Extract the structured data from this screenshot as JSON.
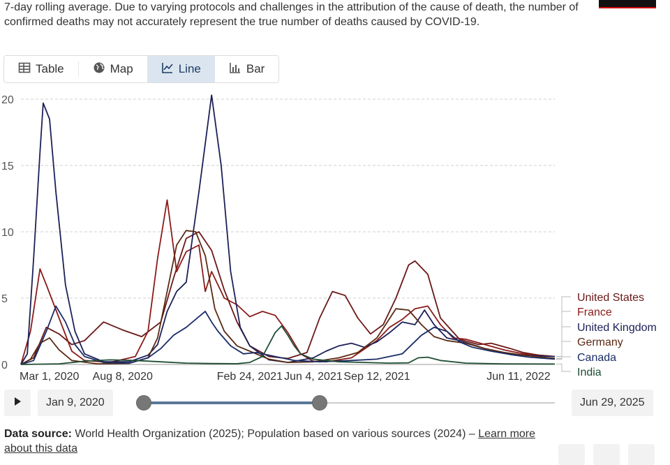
{
  "subtitle": "7-day rolling average. Due to varying protocols and challenges in the attribution of the cause of death, the number of\nconfirmed deaths may not accurately represent the true number of deaths caused by COVID-19.",
  "tabs": [
    {
      "label": "Table",
      "icon": "table-icon"
    },
    {
      "label": "Map",
      "icon": "globe-icon"
    },
    {
      "label": "Line",
      "icon": "line-chart-icon",
      "active": true
    },
    {
      "label": "Bar",
      "icon": "bar-chart-icon"
    }
  ],
  "timeline": {
    "start": "Jan 9, 2020",
    "end": "Jun 29, 2025",
    "range_fraction": [
      0,
      0.427
    ]
  },
  "source": {
    "prefix": "Data source:",
    "text": "World Health Organization (2025); Population based on various sources (2024) –",
    "link": "Learn more about this data"
  },
  "chart_data": {
    "type": "line",
    "ylim": [
      0,
      20
    ],
    "yticks": [
      0,
      5,
      10,
      15,
      20
    ],
    "xlim": [
      0,
      840
    ],
    "xticks": [
      {
        "t": 0,
        "label": "Mar 1, 2020"
      },
      {
        "t": 160,
        "label": "Aug 8, 2020"
      },
      {
        "t": 360,
        "label": "Feb 24, 2021"
      },
      {
        "t": 460,
        "label": "Jun 4, 2021"
      },
      {
        "t": 560,
        "label": "Sep 12, 2021"
      },
      {
        "t": 833,
        "label": "Jun 11, 2022"
      }
    ],
    "series": [
      {
        "name": "United States",
        "color": "#6a1717",
        "points": [
          [
            0,
            0
          ],
          [
            20,
            0.5
          ],
          [
            40,
            2.8
          ],
          [
            60,
            2.3
          ],
          [
            80,
            1.5
          ],
          [
            100,
            1.8
          ],
          [
            130,
            3.2
          ],
          [
            160,
            2.6
          ],
          [
            190,
            2.1
          ],
          [
            220,
            3.2
          ],
          [
            240,
            6.5
          ],
          [
            260,
            9.5
          ],
          [
            280,
            10
          ],
          [
            300,
            8.6
          ],
          [
            320,
            5.6
          ],
          [
            340,
            3.2
          ],
          [
            360,
            1.4
          ],
          [
            390,
            0.6
          ],
          [
            420,
            0.45
          ],
          [
            450,
            0.9
          ],
          [
            470,
            3.5
          ],
          [
            490,
            5.5
          ],
          [
            510,
            5.2
          ],
          [
            530,
            3.5
          ],
          [
            550,
            2.3
          ],
          [
            570,
            3
          ],
          [
            590,
            5
          ],
          [
            610,
            7.5
          ],
          [
            620,
            7.8
          ],
          [
            640,
            6.8
          ],
          [
            660,
            3.5
          ],
          [
            690,
            1.9
          ],
          [
            720,
            1.5
          ],
          [
            740,
            1.6
          ],
          [
            770,
            1.2
          ],
          [
            790,
            0.9
          ],
          [
            815,
            0.7
          ],
          [
            840,
            0.6
          ]
        ]
      },
      {
        "name": "France",
        "color": "#8b1a1a",
        "points": [
          [
            0,
            0
          ],
          [
            15,
            2.5
          ],
          [
            30,
            7.2
          ],
          [
            40,
            6
          ],
          [
            60,
            3.5
          ],
          [
            80,
            1
          ],
          [
            100,
            0.3
          ],
          [
            140,
            0.15
          ],
          [
            180,
            0.6
          ],
          [
            200,
            2.5
          ],
          [
            215,
            8
          ],
          [
            230,
            12.4
          ],
          [
            245,
            7
          ],
          [
            260,
            8.5
          ],
          [
            280,
            9
          ],
          [
            290,
            5.5
          ],
          [
            300,
            7
          ],
          [
            320,
            5
          ],
          [
            340,
            4.5
          ],
          [
            360,
            3.6
          ],
          [
            380,
            4
          ],
          [
            400,
            3.7
          ],
          [
            420,
            2.4
          ],
          [
            440,
            0.8
          ],
          [
            460,
            0.25
          ],
          [
            480,
            0.2
          ],
          [
            520,
            0.5
          ],
          [
            560,
            1.8
          ],
          [
            580,
            2.8
          ],
          [
            600,
            3.4
          ],
          [
            620,
            4.2
          ],
          [
            640,
            4.4
          ],
          [
            660,
            3
          ],
          [
            680,
            2
          ],
          [
            700,
            1.9
          ],
          [
            730,
            1.5
          ],
          [
            760,
            1.1
          ],
          [
            790,
            0.8
          ],
          [
            840,
            0.6
          ]
        ]
      },
      {
        "name": "United Kingdom",
        "color": "#1c1f57",
        "points": [
          [
            0,
            0
          ],
          [
            10,
            0.8
          ],
          [
            20,
            8
          ],
          [
            30,
            16
          ],
          [
            35,
            19.7
          ],
          [
            45,
            18.5
          ],
          [
            55,
            13
          ],
          [
            70,
            6
          ],
          [
            85,
            2.5
          ],
          [
            100,
            0.8
          ],
          [
            130,
            0.2
          ],
          [
            170,
            0.2
          ],
          [
            200,
            0.7
          ],
          [
            215,
            1.5
          ],
          [
            230,
            4
          ],
          [
            245,
            5.5
          ],
          [
            260,
            6.2
          ],
          [
            280,
            13
          ],
          [
            300,
            20.3
          ],
          [
            315,
            15
          ],
          [
            330,
            7
          ],
          [
            345,
            2.8
          ],
          [
            360,
            1.4
          ],
          [
            390,
            0.35
          ],
          [
            420,
            0.15
          ],
          [
            460,
            0.5
          ],
          [
            480,
            1
          ],
          [
            500,
            1.4
          ],
          [
            520,
            1.6
          ],
          [
            540,
            1.3
          ],
          [
            560,
            1.7
          ],
          [
            580,
            2.4
          ],
          [
            600,
            3.2
          ],
          [
            620,
            3
          ],
          [
            635,
            4.1
          ],
          [
            650,
            3
          ],
          [
            670,
            2
          ],
          [
            690,
            1.8
          ],
          [
            710,
            1.5
          ],
          [
            730,
            1.2
          ],
          [
            760,
            0.9
          ],
          [
            790,
            0.7
          ],
          [
            840,
            0.6
          ]
        ]
      },
      {
        "name": "Germany",
        "color": "#5a2a12",
        "points": [
          [
            0,
            0
          ],
          [
            15,
            0.4
          ],
          [
            30,
            1.6
          ],
          [
            45,
            2
          ],
          [
            60,
            1.1
          ],
          [
            80,
            0.3
          ],
          [
            120,
            0.05
          ],
          [
            170,
            0.08
          ],
          [
            200,
            0.5
          ],
          [
            215,
            2
          ],
          [
            230,
            5.5
          ],
          [
            245,
            9
          ],
          [
            260,
            10.1
          ],
          [
            275,
            10
          ],
          [
            290,
            8.2
          ],
          [
            305,
            4.2
          ],
          [
            320,
            2.5
          ],
          [
            340,
            1.4
          ],
          [
            360,
            1
          ],
          [
            390,
            0.4
          ],
          [
            420,
            0.15
          ],
          [
            460,
            0.2
          ],
          [
            500,
            0.5
          ],
          [
            530,
            0.9
          ],
          [
            560,
            2
          ],
          [
            575,
            3.1
          ],
          [
            590,
            4.2
          ],
          [
            610,
            4.1
          ],
          [
            630,
            3
          ],
          [
            650,
            2.1
          ],
          [
            670,
            1.8
          ],
          [
            700,
            1.6
          ],
          [
            730,
            1.2
          ],
          [
            760,
            0.9
          ],
          [
            790,
            0.7
          ],
          [
            840,
            0.45
          ]
        ]
      },
      {
        "name": "Canada",
        "color": "#1a2d66",
        "points": [
          [
            0,
            0
          ],
          [
            20,
            0.3
          ],
          [
            40,
            2.5
          ],
          [
            55,
            4.4
          ],
          [
            70,
            3.2
          ],
          [
            85,
            1.5
          ],
          [
            100,
            0.6
          ],
          [
            130,
            0.15
          ],
          [
            170,
            0.1
          ],
          [
            200,
            0.5
          ],
          [
            220,
            1.2
          ],
          [
            240,
            2.2
          ],
          [
            260,
            2.8
          ],
          [
            280,
            3.6
          ],
          [
            290,
            4
          ],
          [
            300,
            3.2
          ],
          [
            310,
            2.5
          ],
          [
            330,
            1.4
          ],
          [
            350,
            0.8
          ],
          [
            370,
            0.9
          ],
          [
            400,
            0.6
          ],
          [
            430,
            0.3
          ],
          [
            470,
            0.2
          ],
          [
            520,
            0.3
          ],
          [
            560,
            0.4
          ],
          [
            600,
            0.8
          ],
          [
            630,
            2.2
          ],
          [
            650,
            2.8
          ],
          [
            670,
            2.5
          ],
          [
            690,
            1.7
          ],
          [
            710,
            1.3
          ],
          [
            740,
            1
          ],
          [
            770,
            0.75
          ],
          [
            800,
            0.55
          ],
          [
            840,
            0.4
          ]
        ]
      },
      {
        "name": "India",
        "color": "#1f4d33",
        "points": [
          [
            0,
            0
          ],
          [
            60,
            0.05
          ],
          [
            100,
            0.25
          ],
          [
            140,
            0.35
          ],
          [
            180,
            0.3
          ],
          [
            220,
            0.2
          ],
          [
            260,
            0.1
          ],
          [
            300,
            0.07
          ],
          [
            340,
            0.06
          ],
          [
            360,
            0.15
          ],
          [
            380,
            0.6
          ],
          [
            400,
            2.4
          ],
          [
            410,
            2.9
          ],
          [
            420,
            2.2
          ],
          [
            430,
            1.4
          ],
          [
            440,
            0.8
          ],
          [
            460,
            0.4
          ],
          [
            500,
            0.2
          ],
          [
            540,
            0.15
          ],
          [
            580,
            0.1
          ],
          [
            610,
            0.12
          ],
          [
            625,
            0.5
          ],
          [
            640,
            0.55
          ],
          [
            660,
            0.3
          ],
          [
            700,
            0.1
          ],
          [
            760,
            0.05
          ],
          [
            840,
            0.03
          ]
        ]
      }
    ]
  }
}
